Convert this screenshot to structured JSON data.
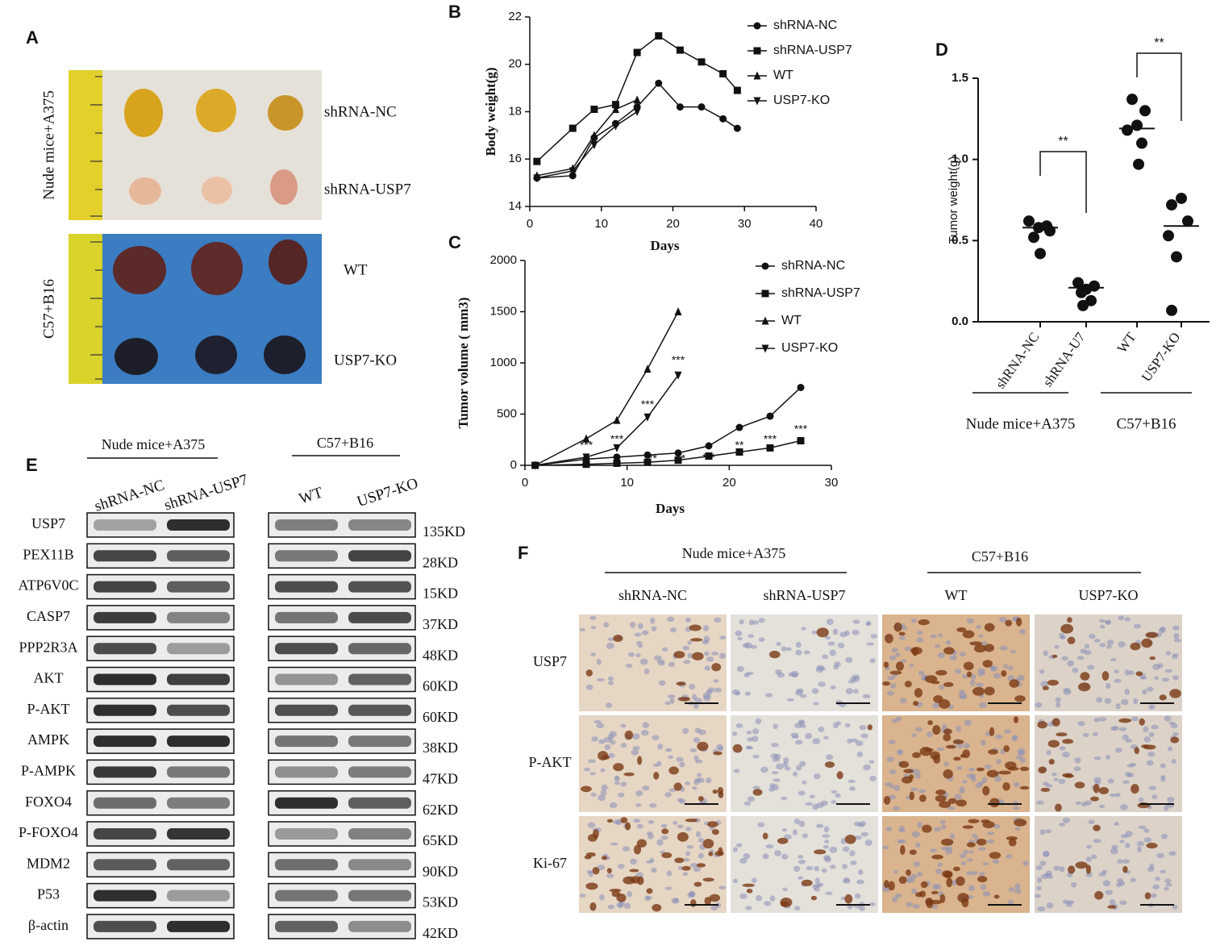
{
  "photos": {
    "letter": "A",
    "groups": [
      {
        "label": "Nude mice+A375",
        "rows": [
          "shRNA-NC",
          "shRNA-USP7"
        ]
      },
      {
        "label": "C57+B16",
        "rows": [
          "WT",
          "USP7-KO"
        ]
      }
    ]
  },
  "chart_data": [
    {
      "type": "line",
      "label": "B",
      "ylabel": "Body weight(g)",
      "xlabel": "Days",
      "xlim": [
        0,
        40
      ],
      "xticks": [
        0,
        10,
        20,
        30,
        40
      ],
      "ylim": [
        14,
        22
      ],
      "yticks": [
        14,
        16,
        18,
        20,
        22
      ],
      "series": [
        {
          "name": "shRNA-NC",
          "marker": "circle",
          "color": "#111111",
          "x": [
            1,
            6,
            9,
            12,
            15,
            18,
            21,
            24,
            27,
            29
          ],
          "values": [
            15.2,
            15.3,
            16.9,
            17.5,
            18.2,
            19.2,
            18.2,
            18.2,
            17.7,
            17.3
          ]
        },
        {
          "name": "shRNA-USP7",
          "marker": "square",
          "color": "#111111",
          "x": [
            1,
            6,
            9,
            12,
            15,
            18,
            21,
            24,
            27,
            29
          ],
          "values": [
            15.9,
            17.3,
            18.1,
            18.3,
            20.5,
            21.2,
            20.6,
            20.1,
            19.6,
            18.9
          ]
        },
        {
          "name": "WT",
          "marker": "triangle-up",
          "color": "#111111",
          "x": [
            1,
            6,
            9,
            12,
            15
          ],
          "values": [
            15.3,
            15.6,
            17.0,
            18.1,
            18.5
          ]
        },
        {
          "name": "USP7-KO",
          "marker": "triangle-down",
          "color": "#111111",
          "x": [
            1,
            6,
            9,
            12,
            15
          ],
          "values": [
            15.2,
            15.5,
            16.6,
            17.4,
            18.0
          ]
        }
      ]
    },
    {
      "type": "line",
      "label": "C",
      "ylabel": "Tumor volume ( mm3)",
      "xlabel": "Days",
      "xlim": [
        0,
        30
      ],
      "xticks": [
        0,
        10,
        20,
        30
      ],
      "ylim": [
        0,
        2000
      ],
      "yticks": [
        0,
        500,
        1000,
        1500,
        2000
      ],
      "series": [
        {
          "name": "shRNA-NC",
          "marker": "circle",
          "color": "#111111",
          "x": [
            1,
            6,
            9,
            12,
            15,
            18,
            21,
            24,
            27
          ],
          "values": [
            0,
            60,
            80,
            100,
            120,
            190,
            370,
            480,
            760
          ]
        },
        {
          "name": "shRNA-USP7",
          "marker": "square",
          "color": "#111111",
          "x": [
            1,
            6,
            9,
            12,
            15,
            18,
            21,
            24,
            27
          ],
          "values": [
            0,
            10,
            20,
            30,
            50,
            90,
            130,
            170,
            240
          ]
        },
        {
          "name": "WT",
          "marker": "triangle-up",
          "color": "#111111",
          "x": [
            1,
            6,
            9,
            12,
            15
          ],
          "values": [
            0,
            260,
            440,
            940,
            1500
          ]
        },
        {
          "name": "USP7-KO",
          "marker": "triangle-down",
          "color": "#111111",
          "x": [
            1,
            6,
            9,
            12,
            15
          ],
          "values": [
            0,
            80,
            170,
            470,
            880
          ]
        }
      ],
      "annotations": [
        {
          "text": "***",
          "x": 15,
          "y": 1020
        },
        {
          "text": "***",
          "x": 12,
          "y": 590
        },
        {
          "text": "***",
          "x": 9,
          "y": 250
        },
        {
          "text": "***",
          "x": 6,
          "y": 190
        },
        {
          "text": "**",
          "x": 12.5,
          "y": 60
        },
        {
          "text": "*",
          "x": 15.5,
          "y": 60
        },
        {
          "text": "***",
          "x": 18,
          "y": 70
        },
        {
          "text": "**",
          "x": 21,
          "y": 190
        },
        {
          "text": "***",
          "x": 24,
          "y": 250
        },
        {
          "text": "***",
          "x": 27,
          "y": 350
        }
      ]
    },
    {
      "type": "dot",
      "label": "D",
      "ylabel": "Tumor weight(g)",
      "ylim": [
        0,
        1.5
      ],
      "yticks": [
        {
          "value": 0,
          "label": "0.0"
        },
        {
          "value": 0.5,
          "label": "0.5"
        },
        {
          "value": 1,
          "label": "1.0"
        },
        {
          "value": 1.5,
          "label": "1.5"
        }
      ],
      "categories": [
        "shRNA-NC",
        "shRNA-U7",
        "WT",
        "USP7-KO"
      ],
      "values": [
        [
          0.62,
          0.59,
          0.58,
          0.56,
          0.52,
          0.42
        ],
        [
          0.24,
          0.22,
          0.2,
          0.18,
          0.13,
          0.1
        ],
        [
          1.37,
          1.3,
          1.21,
          1.18,
          1.1,
          0.97
        ],
        [
          0.76,
          0.72,
          0.62,
          0.53,
          0.4,
          0.07
        ]
      ],
      "means": [
        0.58,
        0.21,
        1.19,
        0.59
      ],
      "groups": [
        {
          "label": "Nude mice+A375",
          "categories": [
            0,
            1
          ]
        },
        {
          "label": "C57+B16",
          "categories": [
            2,
            3
          ]
        }
      ],
      "comparisons": [
        {
          "between": [
            0,
            1
          ],
          "label": "**"
        },
        {
          "between": [
            2,
            3
          ],
          "label": "**"
        }
      ]
    }
  ],
  "blot": {
    "letter": "E",
    "groups": [
      {
        "label": "Nude mice+A375",
        "lanes": [
          "shRNA-NC",
          "shRNA-USP7"
        ]
      },
      {
        "label": "C57+B16",
        "lanes": [
          "WT",
          "USP7-KO"
        ]
      }
    ],
    "rows": [
      {
        "protein": "USP7",
        "size": "135KD"
      },
      {
        "protein": "PEX11B",
        "size": "28KD"
      },
      {
        "protein": "ATP6V0C",
        "size": "15KD"
      },
      {
        "protein": "CASP7",
        "size": "37KD"
      },
      {
        "protein": "PPP2R3A",
        "size": "48KD"
      },
      {
        "protein": "AKT",
        "size": "60KD"
      },
      {
        "protein": "P-AKT",
        "size": "60KD"
      },
      {
        "protein": "AMPK",
        "size": "38KD"
      },
      {
        "protein": "P-AMPK",
        "size": "47KD"
      },
      {
        "protein": "FOXO4",
        "size": "62KD"
      },
      {
        "protein": "P-FOXO4",
        "size": "65KD"
      },
      {
        "protein": "MDM2",
        "size": "90KD"
      },
      {
        "protein": "P53",
        "size": "53KD"
      },
      {
        "protein": "β-actin",
        "size": "42KD"
      }
    ]
  },
  "ihc": {
    "letter": "F",
    "groups": [
      {
        "label": "Nude mice+A375",
        "columns": [
          "shRNA-NC",
          "shRNA-USP7"
        ]
      },
      {
        "label": "C57+B16",
        "columns": [
          "WT",
          "USP7-KO"
        ]
      }
    ],
    "rows": [
      "USP7",
      "P-AKT",
      "Ki-67"
    ]
  }
}
